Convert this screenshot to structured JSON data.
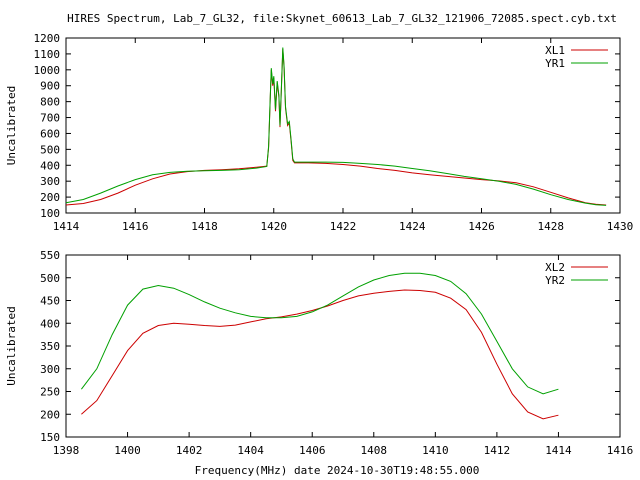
{
  "title": "HIRES Spectrum, Lab_7_GL32, file:Skynet_60613_Lab_7_GL32_121906_72085.spect.cyb.txt",
  "xlabel": "Frequency(MHz) date 2024-10-30T19:48:55.000",
  "colors": {
    "red": "#cc0000",
    "green": "#00a000",
    "axis": "#000000"
  },
  "chart_data": [
    {
      "type": "line",
      "ylabel": "Uncalibrated",
      "xlim": [
        1414,
        1430
      ],
      "ylim": [
        100,
        1200
      ],
      "xticks": [
        1414,
        1416,
        1418,
        1420,
        1422,
        1424,
        1426,
        1428,
        1430
      ],
      "yticks": [
        100,
        200,
        300,
        400,
        500,
        600,
        700,
        800,
        900,
        1000,
        1100,
        1200
      ],
      "legend": "top-right",
      "series": [
        {
          "name": "XL1",
          "color": "#cc0000",
          "points": [
            [
              1414.0,
              150
            ],
            [
              1414.5,
              160
            ],
            [
              1415.0,
              185
            ],
            [
              1415.5,
              225
            ],
            [
              1416.0,
              275
            ],
            [
              1416.5,
              315
            ],
            [
              1417.0,
              345
            ],
            [
              1417.5,
              360
            ],
            [
              1418.0,
              368
            ],
            [
              1418.5,
              372
            ],
            [
              1419.0,
              378
            ],
            [
              1419.5,
              388
            ],
            [
              1419.8,
              395
            ],
            [
              1419.85,
              510
            ],
            [
              1419.9,
              830
            ],
            [
              1419.93,
              1000
            ],
            [
              1419.97,
              900
            ],
            [
              1420.0,
              950
            ],
            [
              1420.05,
              740
            ],
            [
              1420.1,
              920
            ],
            [
              1420.15,
              830
            ],
            [
              1420.18,
              640
            ],
            [
              1420.22,
              880
            ],
            [
              1420.26,
              1130
            ],
            [
              1420.3,
              1010
            ],
            [
              1420.34,
              760
            ],
            [
              1420.4,
              650
            ],
            [
              1420.45,
              665
            ],
            [
              1420.5,
              550
            ],
            [
              1420.55,
              430
            ],
            [
              1420.6,
              415
            ],
            [
              1421.0,
              415
            ],
            [
              1421.5,
              412
            ],
            [
              1422.0,
              405
            ],
            [
              1422.5,
              395
            ],
            [
              1423.0,
              380
            ],
            [
              1423.5,
              368
            ],
            [
              1424.0,
              352
            ],
            [
              1424.5,
              340
            ],
            [
              1425.0,
              330
            ],
            [
              1425.5,
              320
            ],
            [
              1426.0,
              310
            ],
            [
              1426.5,
              302
            ],
            [
              1427.0,
              290
            ],
            [
              1427.5,
              265
            ],
            [
              1428.0,
              230
            ],
            [
              1428.5,
              195
            ],
            [
              1429.0,
              165
            ],
            [
              1429.3,
              155
            ],
            [
              1429.6,
              150
            ]
          ]
        },
        {
          "name": "YR1",
          "color": "#00a000",
          "points": [
            [
              1414.0,
              165
            ],
            [
              1414.5,
              185
            ],
            [
              1415.0,
              225
            ],
            [
              1415.5,
              270
            ],
            [
              1416.0,
              310
            ],
            [
              1416.5,
              340
            ],
            [
              1417.0,
              355
            ],
            [
              1417.5,
              362
            ],
            [
              1418.0,
              365
            ],
            [
              1418.5,
              368
            ],
            [
              1419.0,
              372
            ],
            [
              1419.5,
              382
            ],
            [
              1419.8,
              392
            ],
            [
              1419.85,
              520
            ],
            [
              1419.9,
              840
            ],
            [
              1419.93,
              1010
            ],
            [
              1419.97,
              910
            ],
            [
              1420.0,
              960
            ],
            [
              1420.05,
              750
            ],
            [
              1420.1,
              930
            ],
            [
              1420.15,
              840
            ],
            [
              1420.18,
              650
            ],
            [
              1420.22,
              890
            ],
            [
              1420.26,
              1140
            ],
            [
              1420.3,
              1020
            ],
            [
              1420.34,
              770
            ],
            [
              1420.4,
              660
            ],
            [
              1420.45,
              675
            ],
            [
              1420.5,
              560
            ],
            [
              1420.55,
              440
            ],
            [
              1420.6,
              420
            ],
            [
              1421.0,
              420
            ],
            [
              1421.5,
              420
            ],
            [
              1422.0,
              418
            ],
            [
              1422.5,
              412
            ],
            [
              1423.0,
              405
            ],
            [
              1423.5,
              395
            ],
            [
              1424.0,
              380
            ],
            [
              1424.5,
              365
            ],
            [
              1425.0,
              348
            ],
            [
              1425.5,
              330
            ],
            [
              1426.0,
              315
            ],
            [
              1426.5,
              300
            ],
            [
              1427.0,
              280
            ],
            [
              1427.5,
              250
            ],
            [
              1428.0,
              215
            ],
            [
              1428.5,
              185
            ],
            [
              1429.0,
              162
            ],
            [
              1429.3,
              152
            ],
            [
              1429.6,
              148
            ]
          ]
        }
      ]
    },
    {
      "type": "line",
      "ylabel": "Uncalibrated",
      "xlim": [
        1398,
        1416
      ],
      "ylim": [
        150,
        550
      ],
      "xticks": [
        1398,
        1400,
        1402,
        1404,
        1406,
        1408,
        1410,
        1412,
        1414,
        1416
      ],
      "yticks": [
        150,
        200,
        250,
        300,
        350,
        400,
        450,
        500,
        550
      ],
      "legend": "top-right",
      "series": [
        {
          "name": "XL2",
          "color": "#cc0000",
          "points": [
            [
              1398.5,
              200
            ],
            [
              1399.0,
              230
            ],
            [
              1399.5,
              285
            ],
            [
              1400.0,
              340
            ],
            [
              1400.5,
              378
            ],
            [
              1401.0,
              395
            ],
            [
              1401.5,
              400
            ],
            [
              1402.0,
              398
            ],
            [
              1402.5,
              395
            ],
            [
              1403.0,
              393
            ],
            [
              1403.5,
              396
            ],
            [
              1404.0,
              403
            ],
            [
              1404.5,
              410
            ],
            [
              1405.0,
              414
            ],
            [
              1405.5,
              420
            ],
            [
              1406.0,
              428
            ],
            [
              1406.5,
              438
            ],
            [
              1407.0,
              450
            ],
            [
              1407.5,
              460
            ],
            [
              1408.0,
              466
            ],
            [
              1408.5,
              470
            ],
            [
              1409.0,
              473
            ],
            [
              1409.5,
              472
            ],
            [
              1410.0,
              468
            ],
            [
              1410.5,
              455
            ],
            [
              1411.0,
              430
            ],
            [
              1411.5,
              380
            ],
            [
              1412.0,
              310
            ],
            [
              1412.5,
              245
            ],
            [
              1413.0,
              205
            ],
            [
              1413.5,
              190
            ],
            [
              1414.0,
              198
            ]
          ]
        },
        {
          "name": "YR2",
          "color": "#00a000",
          "points": [
            [
              1398.5,
              255
            ],
            [
              1399.0,
              300
            ],
            [
              1399.5,
              375
            ],
            [
              1400.0,
              440
            ],
            [
              1400.5,
              475
            ],
            [
              1401.0,
              483
            ],
            [
              1401.5,
              477
            ],
            [
              1402.0,
              463
            ],
            [
              1402.5,
              447
            ],
            [
              1403.0,
              433
            ],
            [
              1403.5,
              423
            ],
            [
              1404.0,
              415
            ],
            [
              1404.5,
              412
            ],
            [
              1405.0,
              412
            ],
            [
              1405.5,
              415
            ],
            [
              1406.0,
              425
            ],
            [
              1406.5,
              440
            ],
            [
              1407.0,
              460
            ],
            [
              1407.5,
              480
            ],
            [
              1408.0,
              495
            ],
            [
              1408.5,
              505
            ],
            [
              1409.0,
              510
            ],
            [
              1409.5,
              510
            ],
            [
              1410.0,
              505
            ],
            [
              1410.5,
              492
            ],
            [
              1411.0,
              465
            ],
            [
              1411.5,
              420
            ],
            [
              1412.0,
              360
            ],
            [
              1412.5,
              300
            ],
            [
              1413.0,
              260
            ],
            [
              1413.5,
              245
            ],
            [
              1414.0,
              255
            ]
          ]
        }
      ]
    }
  ]
}
